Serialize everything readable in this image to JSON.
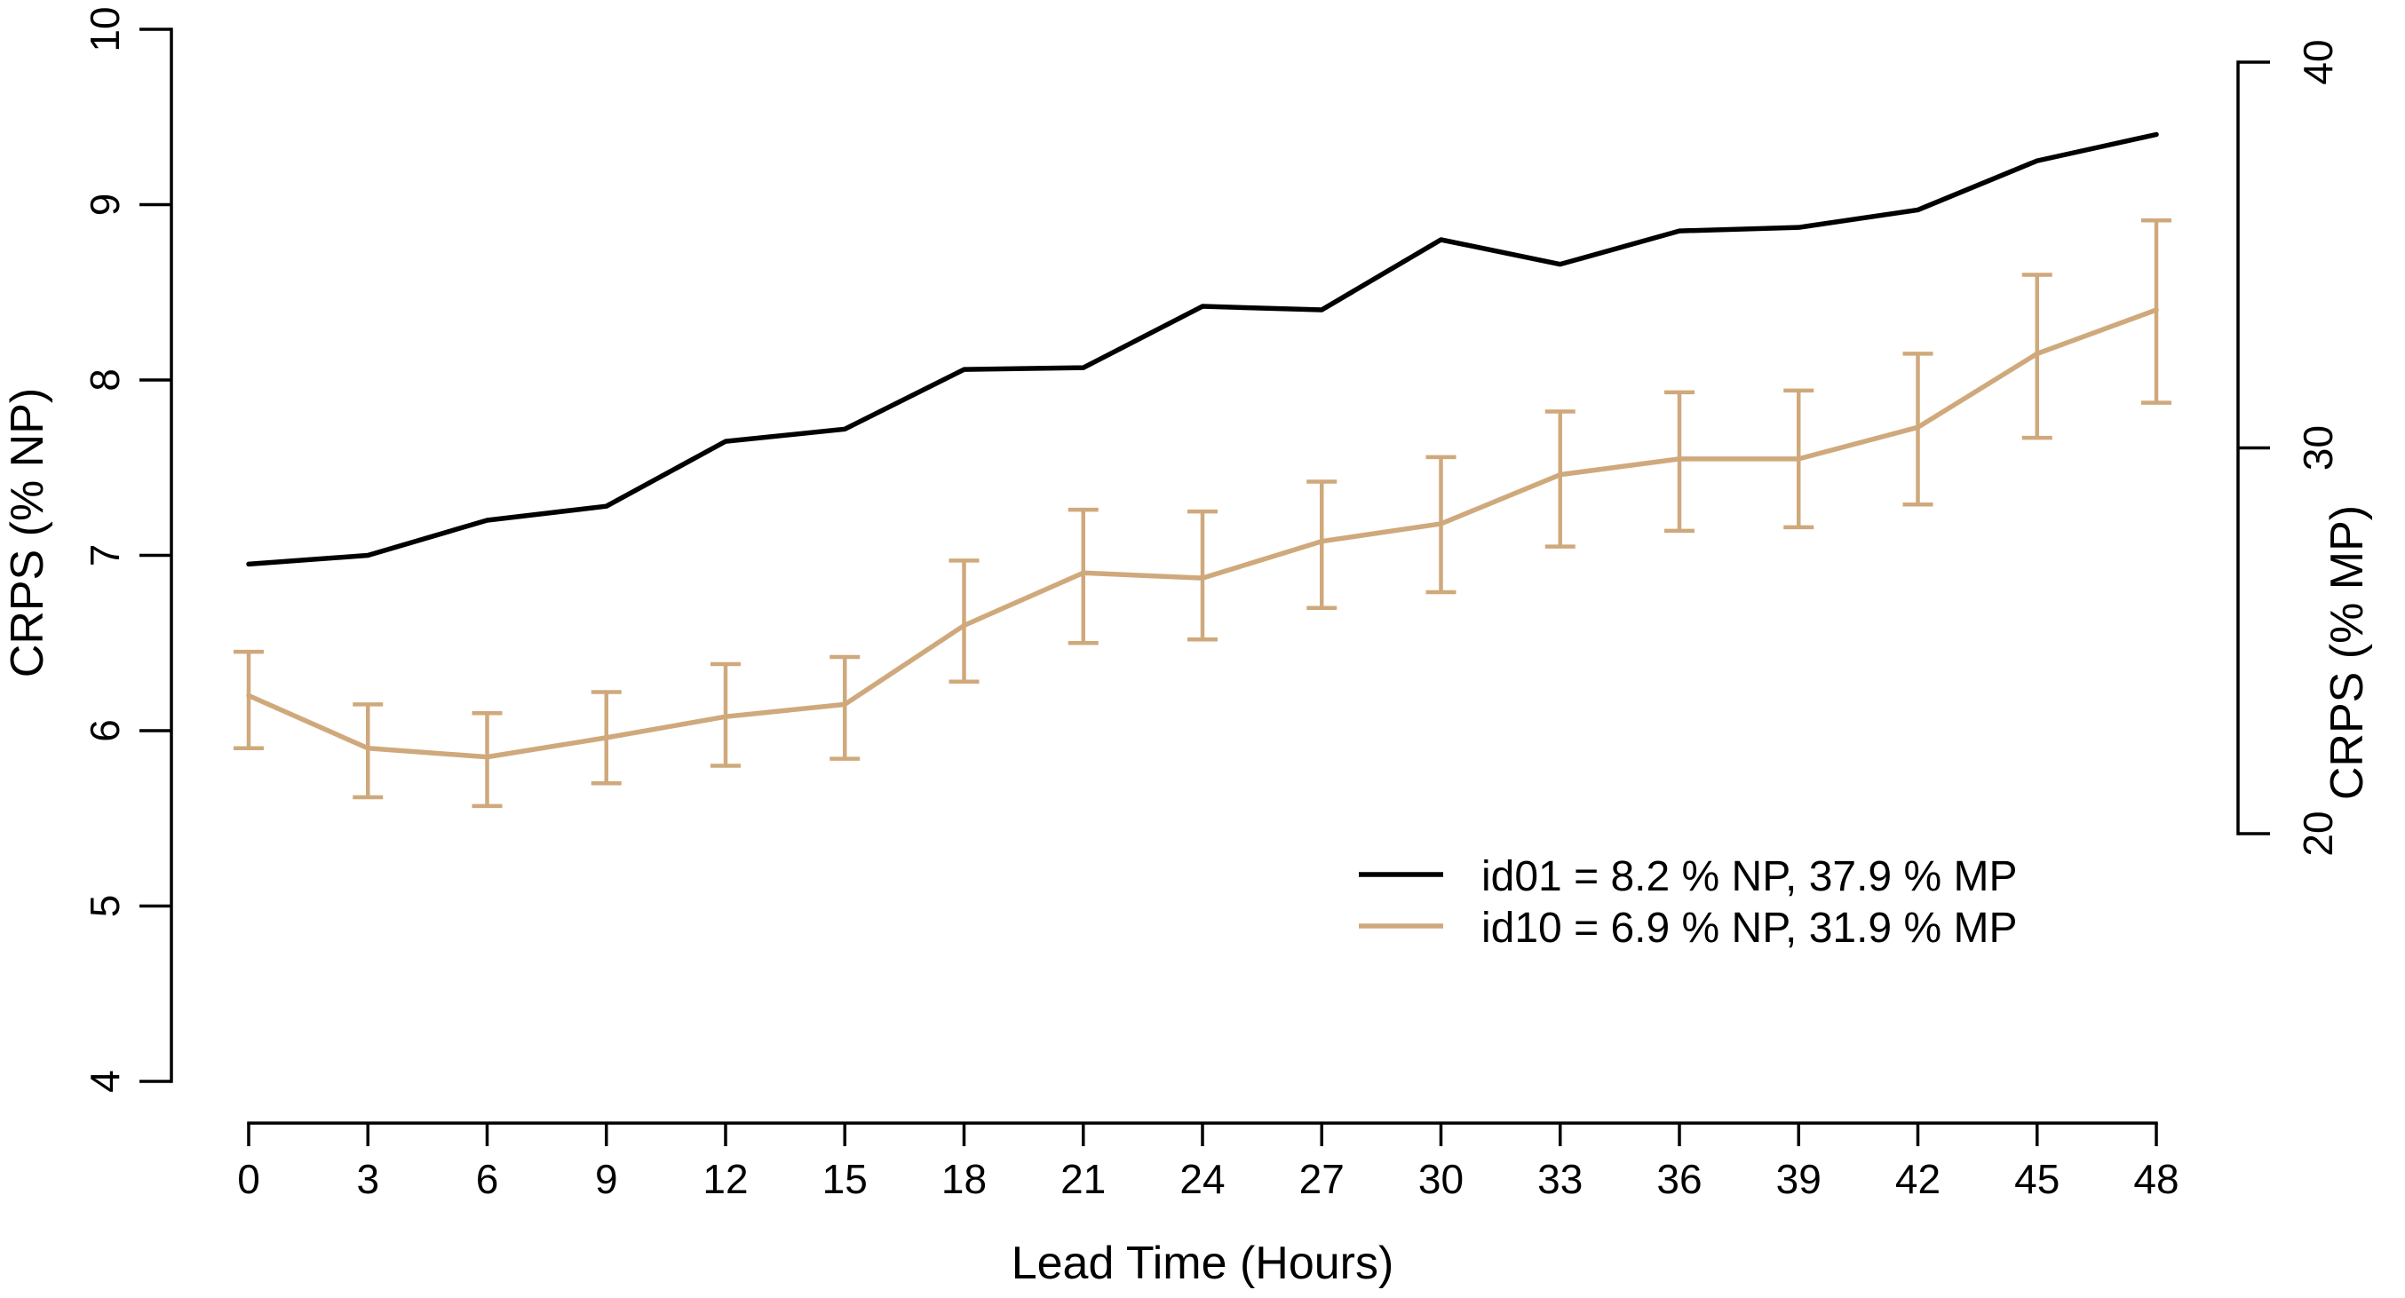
{
  "figure": {
    "background": "#ffffff",
    "axis_color": "#000000"
  },
  "chart_data": {
    "type": "line",
    "title": "",
    "xlabel": "Lead Time (Hours)",
    "ylabel_left": "CRPS (% NP)",
    "ylabel_right": "CRPS (% MP)",
    "xlim": [
      0,
      48
    ],
    "ylim_left": [
      4,
      10
    ],
    "ylim_right": [
      20,
      40
    ],
    "x_ticks": [
      0,
      3,
      6,
      9,
      12,
      15,
      18,
      21,
      24,
      27,
      30,
      33,
      36,
      39,
      42,
      45,
      48
    ],
    "left_ticks": [
      4,
      5,
      6,
      7,
      8,
      9,
      10
    ],
    "right_ticks": [
      20,
      30,
      40
    ],
    "grid": false,
    "legend_position": "inside-bottom-right",
    "x": [
      0,
      3,
      6,
      9,
      12,
      15,
      18,
      21,
      24,
      27,
      30,
      33,
      36,
      39,
      42,
      45,
      48
    ],
    "series": [
      {
        "name": "id01",
        "legend_label": "id01 = 8.2 % NP,  37.9 % MP",
        "color": "#000000",
        "axis": "left",
        "values": [
          6.95,
          7.0,
          7.2,
          7.28,
          7.65,
          7.72,
          8.06,
          8.07,
          8.42,
          8.4,
          8.8,
          8.66,
          8.85,
          8.87,
          8.97,
          9.25,
          9.4
        ]
      },
      {
        "name": "id10",
        "legend_label": "id10 = 6.9 % NP,  31.9 % MP",
        "color": "#CFA97C",
        "axis": "left",
        "values": [
          6.2,
          5.9,
          5.85,
          5.96,
          6.08,
          6.15,
          6.6,
          6.9,
          6.87,
          7.08,
          7.18,
          7.46,
          7.55,
          7.55,
          7.73,
          8.15,
          8.4
        ],
        "error_low": [
          5.9,
          5.62,
          5.57,
          5.7,
          5.8,
          5.84,
          6.28,
          6.5,
          6.52,
          6.7,
          6.79,
          7.05,
          7.14,
          7.16,
          7.29,
          7.67,
          7.87
        ],
        "error_high": [
          6.45,
          6.15,
          6.1,
          6.22,
          6.38,
          6.42,
          6.97,
          7.26,
          7.25,
          7.42,
          7.56,
          7.82,
          7.93,
          7.94,
          8.15,
          8.6,
          8.91
        ]
      }
    ]
  }
}
